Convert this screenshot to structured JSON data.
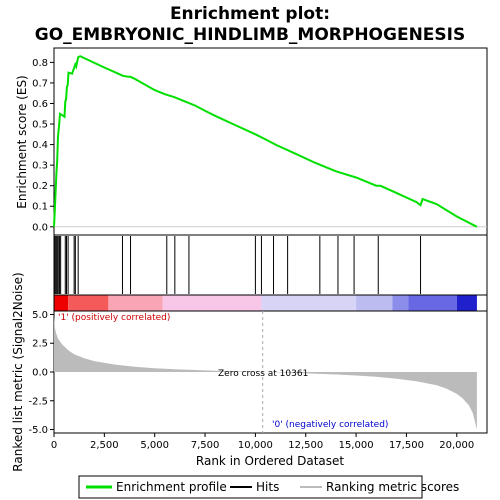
{
  "chart_data": {
    "type": "line",
    "title_line1": "Enrichment plot:",
    "title_line2": "GO_EMBRYONIC_HINDLIMB_MORPHOGENESIS",
    "xlabel": "Rank in Ordered Dataset",
    "xlim": [
      0,
      21500
    ],
    "x_ticks": [
      0,
      2500,
      5000,
      7500,
      10000,
      12500,
      15000,
      17500,
      20000
    ],
    "x_tick_labels": [
      "0",
      "2,500",
      "5,000",
      "7,500",
      "10,000",
      "12,500",
      "15,000",
      "17,500",
      "20,000"
    ],
    "top_panel": {
      "ylabel": "Enrichment score (ES)",
      "ylim": [
        -0.04,
        0.87
      ],
      "y_ticks": [
        0.0,
        0.1,
        0.2,
        0.3,
        0.4,
        0.5,
        0.6,
        0.7,
        0.8
      ],
      "y_tick_labels": [
        "0.0",
        "0.1",
        "0.2",
        "0.3",
        "0.4",
        "0.5",
        "0.6",
        "0.7",
        "0.8"
      ],
      "series": [
        {
          "name": "Enrichment profile",
          "color": "#00e000",
          "x": [
            0,
            40,
            80,
            120,
            160,
            200,
            260,
            300,
            380,
            520,
            560,
            600,
            640,
            680,
            720,
            900,
            1060,
            1100,
            1200,
            1300,
            2500,
            3300,
            3400,
            3700,
            3800,
            4000,
            5000,
            5500,
            6000,
            6500,
            7000,
            7500,
            8000,
            9000,
            10000,
            10500,
            11000,
            12000,
            13000,
            14000,
            15000,
            16000,
            16200,
            17000,
            18000,
            18200,
            18300,
            19000,
            20000,
            21000
          ],
          "y": [
            0.0,
            0.08,
            0.17,
            0.26,
            0.32,
            0.44,
            0.5,
            0.55,
            0.545,
            0.535,
            0.61,
            0.62,
            0.68,
            0.69,
            0.75,
            0.745,
            0.79,
            0.78,
            0.825,
            0.83,
            0.775,
            0.74,
            0.735,
            0.73,
            0.73,
            0.72,
            0.665,
            0.645,
            0.63,
            0.61,
            0.59,
            0.565,
            0.54,
            0.495,
            0.45,
            0.425,
            0.4,
            0.355,
            0.31,
            0.27,
            0.24,
            0.2,
            0.2,
            0.165,
            0.12,
            0.105,
            0.135,
            0.11,
            0.05,
            0.0
          ]
        }
      ]
    },
    "hits": [
      20,
      60,
      110,
      160,
      210,
      270,
      330,
      560,
      620,
      700,
      1000,
      1060,
      1200,
      3400,
      3800,
      5600,
      6000,
      6700,
      10000,
      10300,
      10900,
      11600,
      13200,
      14100,
      14900,
      16100,
      18200
    ],
    "bottom_panel": {
      "ylabel": "Ranked list metric (Signal2Noise)",
      "ylim": [
        -5.3,
        5.3
      ],
      "y_ticks": [
        5.0,
        2.5,
        0.0,
        -2.5,
        -5.0
      ],
      "y_tick_labels": [
        "5.0",
        "2.5",
        "0.0",
        "-2.5",
        "-5.0"
      ],
      "metric_profile": {
        "x": [
          0,
          50,
          100,
          200,
          400,
          700,
          1000,
          1500,
          2000,
          3000,
          4000,
          5000,
          6000,
          7000,
          8000,
          9000,
          10000,
          10361,
          11000,
          12000,
          13000,
          14000,
          15000,
          16000,
          17000,
          18000,
          19000,
          19500,
          20000,
          20300,
          20600,
          20800,
          20900,
          21000
        ],
        "y": [
          4.8,
          3.8,
          3.4,
          2.9,
          2.4,
          1.9,
          1.55,
          1.2,
          0.95,
          0.65,
          0.45,
          0.33,
          0.24,
          0.17,
          0.11,
          0.06,
          0.02,
          0.0,
          -0.03,
          -0.09,
          -0.15,
          -0.22,
          -0.3,
          -0.42,
          -0.58,
          -0.8,
          -1.15,
          -1.45,
          -1.9,
          -2.3,
          -2.9,
          -3.6,
          -4.3,
          -5.0
        ]
      },
      "zero_cross_label": "Zero cross at 10361",
      "zero_cross_x": 10361,
      "pos_label": "'1' (positively correlated)",
      "neg_label": "'0' (negatively correlated)",
      "pos_color": "#cc0000",
      "neg_color": "#0000cc"
    },
    "color_bar": {
      "segments": [
        {
          "to": 700,
          "color": "#ee0000"
        },
        {
          "to": 2700,
          "color": "#f55a5a"
        },
        {
          "to": 5400,
          "color": "#f9a5b5"
        },
        {
          "to": 10300,
          "color": "#f8c6e6"
        },
        {
          "to": 15000,
          "color": "#d8d4f6"
        },
        {
          "to": 16800,
          "color": "#bcbcf0"
        },
        {
          "to": 17600,
          "color": "#8c8cea"
        },
        {
          "to": 20000,
          "color": "#6868e4"
        },
        {
          "to": 21000,
          "color": "#2020cc"
        }
      ]
    },
    "legend": {
      "position": "bottom",
      "items": [
        {
          "label": "Enrichment profile",
          "color": "#00e000"
        },
        {
          "label": "Hits",
          "color": "#000000"
        },
        {
          "label": "Ranking metric scores",
          "color": "#bbbbbb"
        }
      ]
    }
  }
}
